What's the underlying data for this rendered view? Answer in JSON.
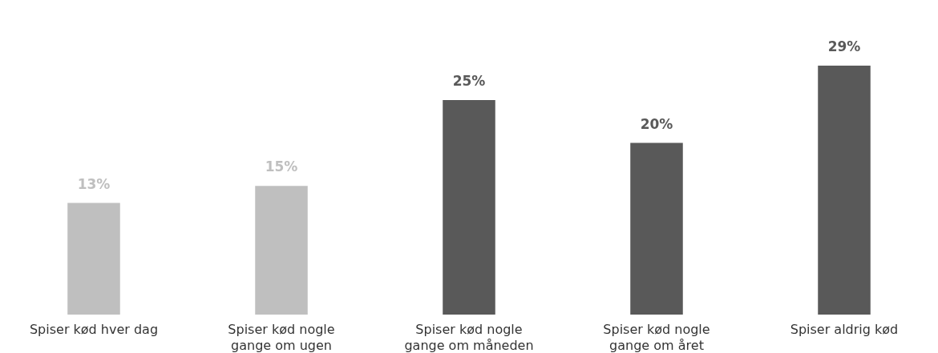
{
  "chart_data": {
    "type": "bar",
    "categories": [
      "Spiser kød hver dag",
      "Spiser kød nogle gange om ugen",
      "Spiser kød nogle gange om måneden",
      "Spiser kød nogle gange om året",
      "Spiser aldrig kød"
    ],
    "values": [
      13,
      15,
      25,
      20,
      29
    ],
    "colors": [
      "#bfbfbf",
      "#bfbfbf",
      "#595959",
      "#595959",
      "#595959"
    ],
    "value_labels": [
      "13%",
      "15%",
      "25%",
      "20%",
      "29%"
    ]
  }
}
